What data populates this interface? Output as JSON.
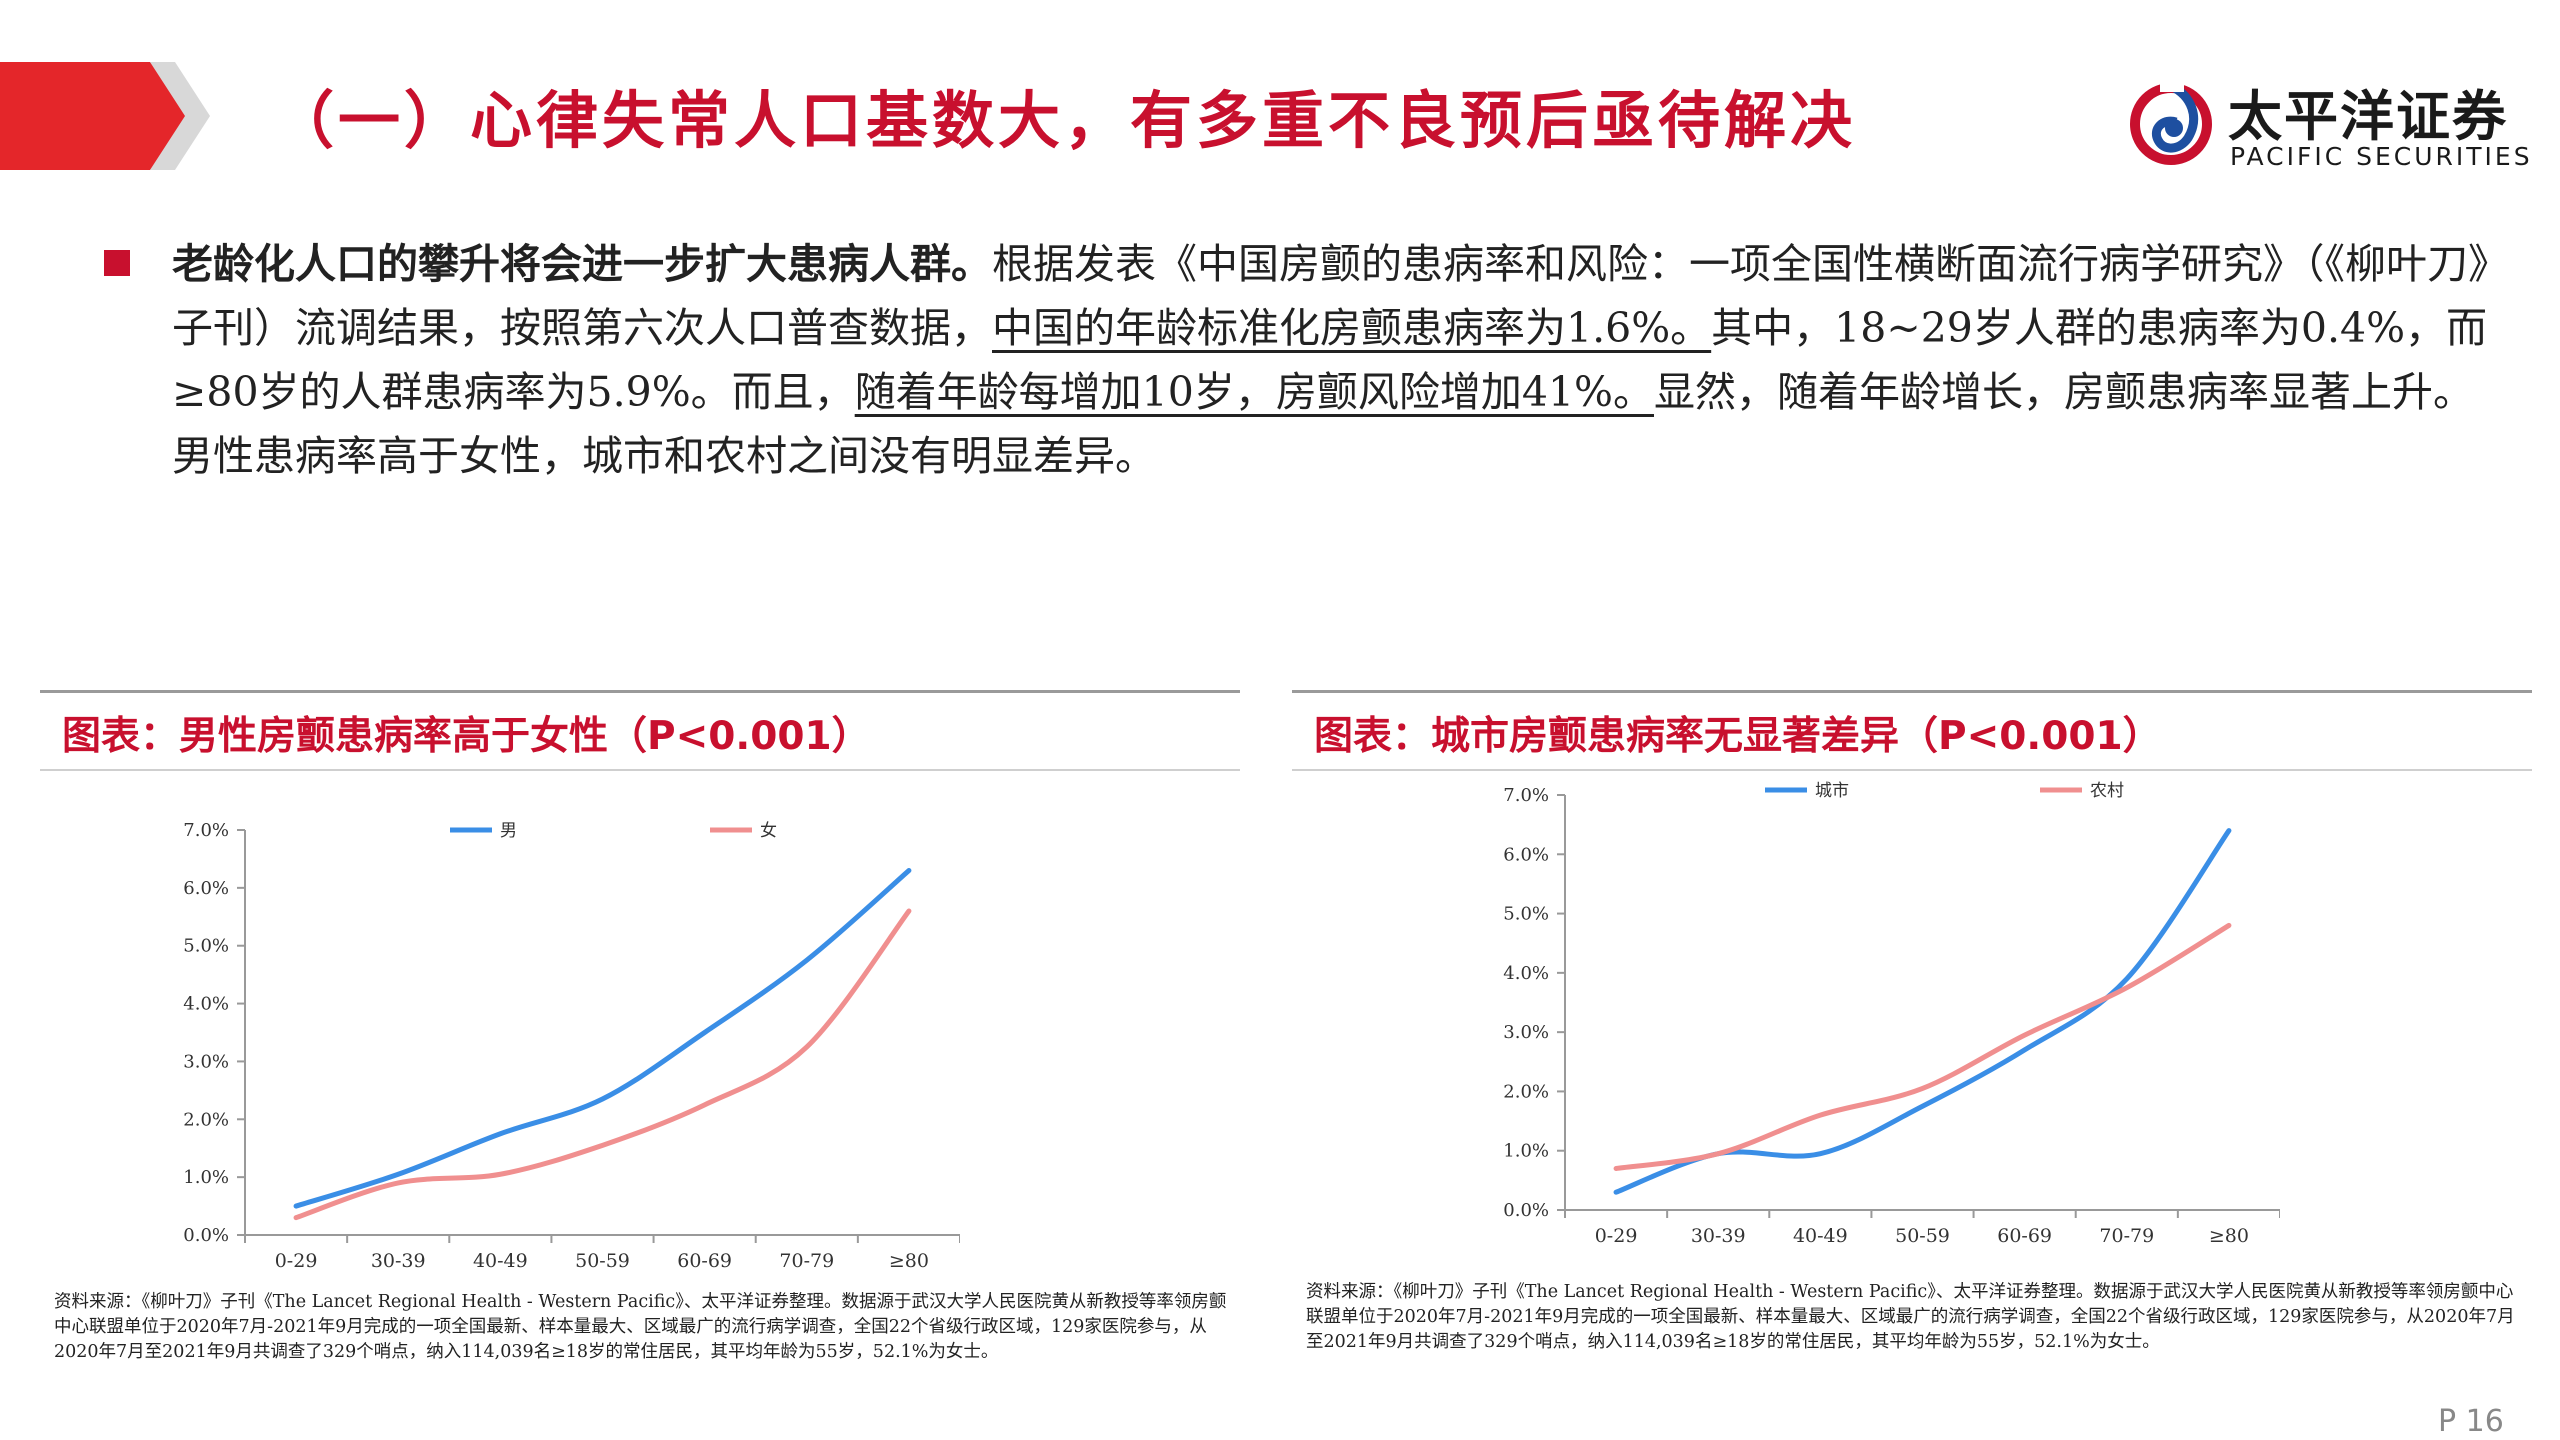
{
  "header": {
    "title": "（一）心律失常人口基数大，有多重不良预后亟待解决",
    "logo_cn": "太平洋证券",
    "logo_en": "PACIFIC SECURITIES",
    "accent_color": "#c8102e"
  },
  "body": {
    "bullet_icon": "square-bullet",
    "lead": "老龄化人口的攀升将会进一步扩大患病人群。",
    "text1": "根据发表《中国房颤的患病率和风险：一项全国性横断面流行病学研究》（《柳叶刀》子刊）流调结果，按照第六次人口普查数据，",
    "underline1": "中国的年龄标准化房颤患病率为1.6%。",
    "text2": "其中，18~29岁人群的患病率为0.4%，而≥80岁的人群患病率为5.9%。而且，",
    "underline2": "随着年龄每增加10岁，房颤风险增加41%。",
    "text3": "显然，随着年龄增长，房颤患病率显著上升。男性患病率高于女性，城市和农村之间没有明显差异。"
  },
  "left_panel": {
    "title": "图表：男性房颤患病率高于女性（P<0.001）",
    "source": "资料来源：《柳叶刀》子刊《The Lancet Regional Health - Western Pacific》、太平洋证券整理。数据源于武汉大学人民医院黄从新教授等率领房颤中心联盟单位于2020年7月-2021年9月完成的一项全国最新、样本量最大、区域最广的流行病学调查，全国22个省级行政区域，129家医院参与，从2020年7月至2021年9月共调查了329个哨点，纳入114,039名≥18岁的常住居民，其平均年龄为55岁，52.1%为女士。"
  },
  "right_panel": {
    "title": "图表：城市房颤患病率无显著差异（P<0.001）",
    "source": "资料来源：《柳叶刀》子刊《The Lancet Regional Health - Western Pacific》、太平洋证券整理。数据源于武汉大学人民医院黄从新教授等率领房颤中心联盟单位于2020年7月-2021年9月完成的一项全国最新、样本量最大、区域最广的流行病学调查，全国22个省级行政区域，129家医院参与，从2020年7月至2021年9月共调查了329个哨点，纳入114,039名≥18岁的常住居民，其平均年龄为55岁，52.1%为女士。"
  },
  "chart_data": [
    {
      "type": "line",
      "categories": [
        "0-29",
        "30-39",
        "40-49",
        "50-59",
        "60-69",
        "70-79",
        "≥80"
      ],
      "ylim": [
        0,
        7
      ],
      "yticks": [
        "0.0%",
        "1.0%",
        "2.0%",
        "3.0%",
        "4.0%",
        "5.0%",
        "6.0%",
        "7.0%"
      ],
      "legend_position": "top",
      "grid": false,
      "series": [
        {
          "name": "男",
          "color": "#3a8ee6",
          "values": [
            0.5,
            1.05,
            1.75,
            2.35,
            3.5,
            4.75,
            6.3
          ]
        },
        {
          "name": "女",
          "color": "#f08f8f",
          "values": [
            0.3,
            0.9,
            1.05,
            1.55,
            2.25,
            3.25,
            5.6
          ]
        }
      ]
    },
    {
      "type": "line",
      "categories": [
        "0-29",
        "30-39",
        "40-49",
        "50-59",
        "60-69",
        "70-79",
        "≥80"
      ],
      "ylim": [
        0,
        7
      ],
      "yticks": [
        "0.0%",
        "1.0%",
        "2.0%",
        "3.0%",
        "4.0%",
        "5.0%",
        "6.0%",
        "7.0%"
      ],
      "legend_position": "top",
      "grid": false,
      "series": [
        {
          "name": "城市",
          "color": "#3a8ee6",
          "values": [
            0.3,
            0.95,
            0.95,
            1.75,
            2.7,
            3.9,
            6.4
          ]
        },
        {
          "name": "农村",
          "color": "#f08f8f",
          "values": [
            0.7,
            0.95,
            1.6,
            2.05,
            2.95,
            3.75,
            4.8
          ]
        }
      ]
    }
  ],
  "footer": {
    "page": "P 16"
  }
}
